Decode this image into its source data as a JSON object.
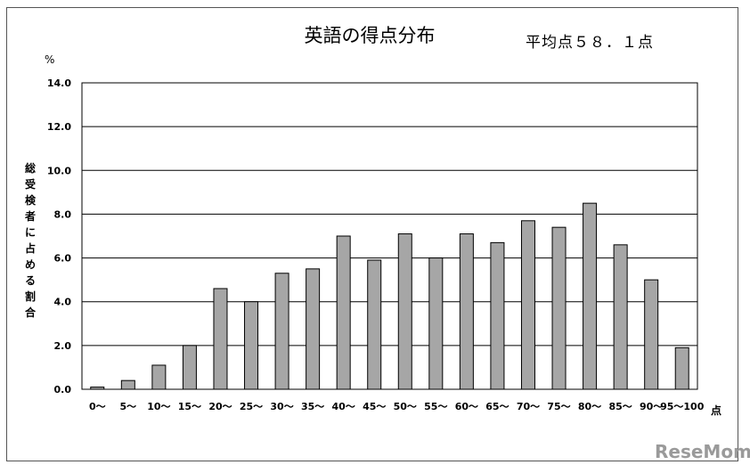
{
  "chart_data": {
    "type": "bar",
    "title": "英語の得点分布",
    "subtitle": "平均点５８．１点",
    "ylabel": "総受検者に占める割合",
    "y_unit": "%",
    "xlabel": "点",
    "ylim": [
      0,
      14
    ],
    "yticks": [
      "0.0",
      "2.0",
      "4.0",
      "6.0",
      "8.0",
      "10.0",
      "12.0",
      "14.0"
    ],
    "grid": true,
    "categories": [
      "0～",
      "5～",
      "10～",
      "15～",
      "20～",
      "25～",
      "30～",
      "35～",
      "40～",
      "45～",
      "50～",
      "55～",
      "60～",
      "65～",
      "70～",
      "75～",
      "80～",
      "85～",
      "90～",
      "95～100"
    ],
    "values": [
      0.1,
      0.4,
      1.1,
      2.0,
      4.6,
      4.0,
      5.3,
      5.5,
      7.0,
      5.9,
      7.1,
      6.0,
      7.1,
      6.7,
      7.7,
      7.4,
      8.5,
      6.6,
      5.0,
      1.9
    ],
    "bar_color": "#a6a6a6"
  },
  "watermark": "ReseMom"
}
